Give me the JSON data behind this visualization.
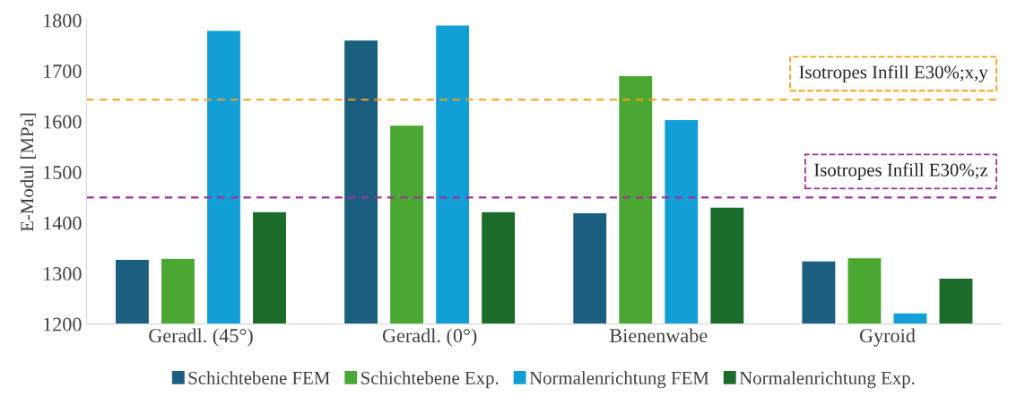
{
  "chart_data": {
    "type": "bar",
    "ylabel": "E-Modul [MPa]",
    "categories": [
      "Geradl. (45°)",
      "Geradl. (0°)",
      "Bienenwabe",
      "Gyroid"
    ],
    "series": [
      {
        "name": "Schichtebene FEM",
        "color": "#1a5f80",
        "values": [
          1328,
          1761,
          1420,
          1325
        ]
      },
      {
        "name": "Schichtebene Exp.",
        "color": "#4aa832",
        "values": [
          1330,
          1593,
          1691,
          1331
        ]
      },
      {
        "name": "Normalenrichtung FEM",
        "color": "#129fd8",
        "values": [
          1780,
          1791,
          1604,
          1222
        ]
      },
      {
        "name": "Normalenrichtung Exp.",
        "color": "#1b6b2a",
        "values": [
          1422,
          1422,
          1431,
          1291
        ]
      }
    ],
    "ylim": [
      1200,
      1800
    ],
    "yticks": [
      1200,
      1300,
      1400,
      1500,
      1600,
      1700,
      1800
    ],
    "ref_lines": [
      {
        "axis": "y",
        "value": 1643,
        "label": "Isotropes Infill E30%;x,y",
        "color": "#f5a01a",
        "line_style": "dashed"
      },
      {
        "axis": "y",
        "value": 1450,
        "label": "Isotropes Infill E30%;z",
        "color": "#a3329a",
        "line_style": "dashed"
      }
    ],
    "grid": false,
    "legend": "bottom"
  }
}
